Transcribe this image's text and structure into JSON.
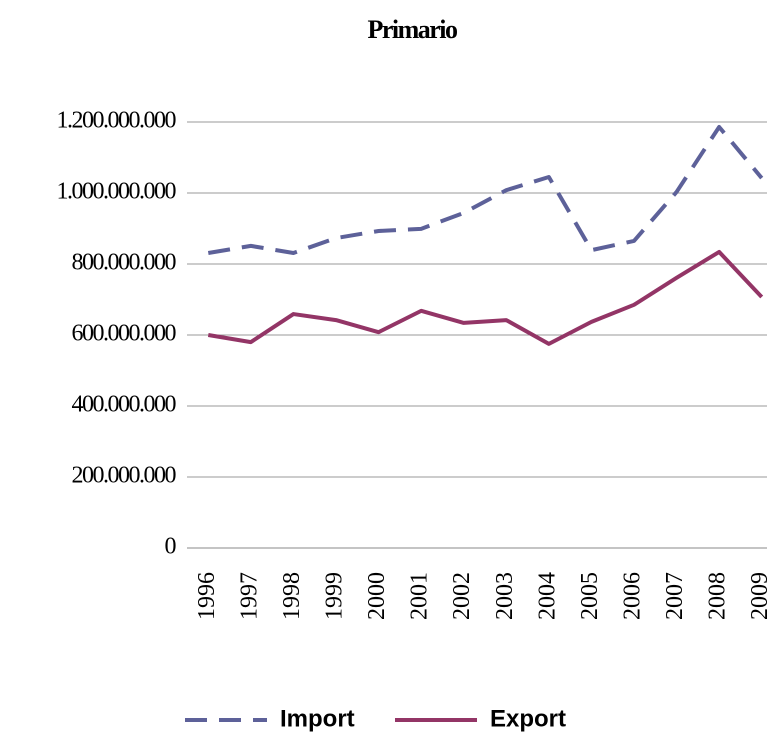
{
  "chart_data": {
    "type": "line",
    "title": "Primario",
    "categories": [
      "1996",
      "1997",
      "1998",
      "1999",
      "2000",
      "2001",
      "2002",
      "2003",
      "2004",
      "2005",
      "2006",
      "2007",
      "2008",
      "2009"
    ],
    "series": [
      {
        "name": "Import",
        "color": "#5d6199",
        "dashed": true,
        "values": [
          831000000,
          851000000,
          831000000,
          873000000,
          893000000,
          899000000,
          944000000,
          1008000000,
          1045000000,
          839000000,
          865000000,
          1003000000,
          1186000000,
          1042000000
        ]
      },
      {
        "name": "Export",
        "color": "#933566",
        "dashed": false,
        "values": [
          600000000,
          580000000,
          659000000,
          642000000,
          608000000,
          668000000,
          634000000,
          642000000,
          575000000,
          637000000,
          685000000,
          761000000,
          834000000,
          707000000
        ]
      }
    ],
    "ylim": [
      0,
      1200000000
    ],
    "yticks": [
      0,
      {
        "value": 200000000,
        "label": "200.000.000"
      },
      {
        "value": 400000000,
        "label": "400.000.000"
      },
      {
        "value": 600000000,
        "label": "600.000.000"
      },
      {
        "value": 800000000,
        "label": "800.000.000"
      },
      {
        "value": 1000000000,
        "label": "1.000.000.000"
      },
      {
        "value": 1200000000,
        "label": "1.200.000.000"
      }
    ],
    "grid": true,
    "legend": "bottom"
  }
}
